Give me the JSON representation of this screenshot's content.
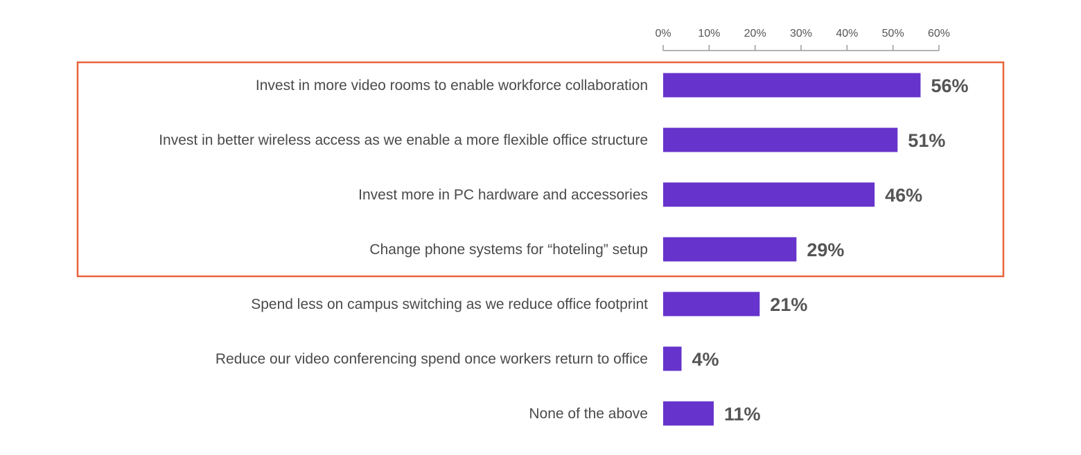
{
  "chart_data": {
    "type": "bar",
    "orientation": "horizontal",
    "title": "",
    "xlabel": "",
    "ylabel": "",
    "xlim": [
      0,
      60
    ],
    "x_ticks": [
      0,
      10,
      20,
      30,
      40,
      50,
      60
    ],
    "x_tick_labels": [
      "0%",
      "10%",
      "20%",
      "30%",
      "40%",
      "50%",
      "60%"
    ],
    "axis_position": "top",
    "grid": false,
    "categories": [
      "Invest in more video rooms to enable workforce collaboration",
      "Invest in better wireless access as we enable a more flexible office structure",
      "Invest more in PC hardware and accessories",
      "Change phone systems for “hoteling” setup",
      "Spend less on campus switching as we reduce office footprint",
      "Reduce our video conferencing spend once workers return to office",
      "None of the above"
    ],
    "values": [
      56,
      51,
      46,
      29,
      21,
      4,
      11
    ],
    "value_labels": [
      "56%",
      "51%",
      "46%",
      "29%",
      "21%",
      "4%",
      "11%"
    ],
    "highlighted_categories": [
      0,
      1,
      2,
      3
    ],
    "colors": {
      "bar": "#6633cc",
      "highlight_border": "#e8633a",
      "axis": "#9a9a9a",
      "text": "#4a4a4a",
      "value_text": "#555555"
    }
  }
}
